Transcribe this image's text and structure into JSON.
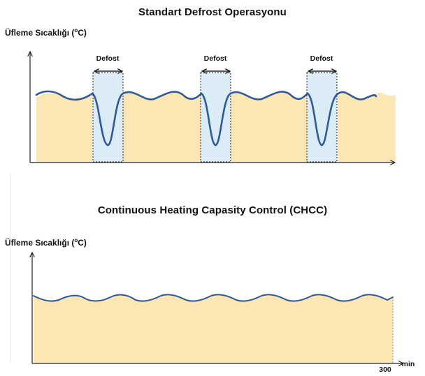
{
  "top": {
    "title": "Standart Defrost Operasyonu",
    "ylabel_prefix": "Üfleme Sıcaklığı (",
    "ylabel_sup": "o",
    "ylabel_suffix": "C)",
    "defrost_label": "Defost",
    "defrost_count": 3
  },
  "bottom": {
    "title": "Continuous Heating Capasity Control (CHCC)",
    "ylabel_prefix": "Üfleme Sıcaklığı (",
    "ylabel_sup": "o",
    "ylabel_suffix": "C)",
    "x_tick_label": "300",
    "x_unit_label": "min"
  },
  "colors": {
    "fill": "#fbe6b4",
    "line": "#2f5a9a",
    "defrost_band": "#dcecf6",
    "axis": "#222222"
  }
}
